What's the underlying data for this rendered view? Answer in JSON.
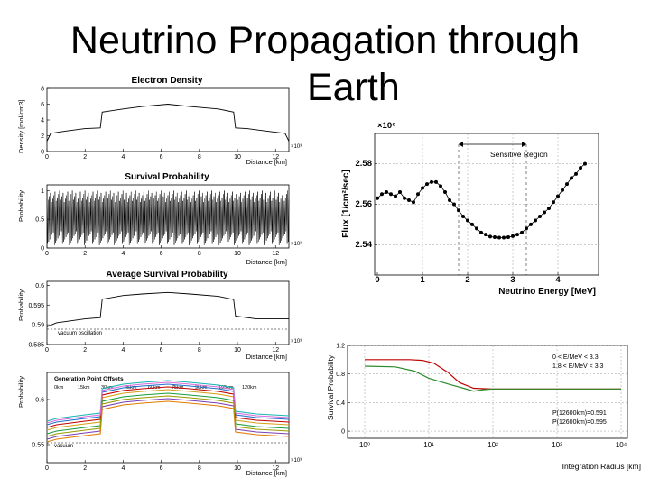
{
  "slide_title_line1": "Neutrino Propagation through",
  "slide_title_line2": "Earth",
  "panels": {
    "electron_density": {
      "title": "Electron Density",
      "ylabel": "Density [mol/cm3]",
      "xlabel": "Distance [km]",
      "xexp": "×10³",
      "xticks": [
        "0",
        "2",
        "4",
        "6",
        "8",
        "10",
        "12"
      ],
      "yticks": [
        "0",
        "2",
        "4",
        "6",
        "8"
      ]
    },
    "survival": {
      "title": "Survival Probability",
      "ylabel": "Probability",
      "xlabel": "Distance [km]",
      "xexp": "×10³",
      "xticks": [
        "0",
        "2",
        "4",
        "6",
        "8",
        "10",
        "12"
      ],
      "yticks": [
        "0",
        "0.5",
        "1"
      ]
    },
    "average_survival": {
      "title": "Average Survival Probability",
      "ylabel": "Probability",
      "xlabel": "Distance [km]",
      "xexp": "×10³",
      "xticks": [
        "0",
        "2",
        "4",
        "6",
        "8",
        "10",
        "12"
      ],
      "yticks": [
        "0.585",
        "0.59",
        "0.595",
        "0.6"
      ],
      "annotation": "vacuum oscillation"
    },
    "generation_offsets": {
      "title": "Generation Point Offsets",
      "ylabel": "Probability",
      "xlabel": "Distance [km]",
      "xexp": "×10³",
      "xticks": [
        "0",
        "2",
        "4",
        "6",
        "8",
        "10",
        "12"
      ],
      "yticks": [
        "0.55",
        "0.6"
      ],
      "annotation": "vacuum",
      "legend": [
        {
          "label": "0km",
          "color": "#d4a017"
        },
        {
          "label": "15km",
          "color": "#7a3fb5"
        },
        {
          "label": "30km",
          "color": "#1e6fd0"
        },
        {
          "label": "45km",
          "color": "#1a9c3c"
        },
        {
          "label": "60km",
          "color": "#18b4b4"
        },
        {
          "label": "75km",
          "color": "#e07b00"
        },
        {
          "label": "90km",
          "color": "#c00000"
        },
        {
          "label": "105km",
          "color": "#9a9a00"
        },
        {
          "label": "120km",
          "color": "#d86bd8"
        }
      ]
    },
    "flux": {
      "ylabel": "Flux [1/cm²/sec]",
      "xlabel": "Neutrino Energy [MeV]",
      "yexp": "×10⁶",
      "xticks": [
        "0",
        "1",
        "2",
        "3",
        "4"
      ],
      "yticks": [
        "2.54",
        "2.56",
        "2.58"
      ],
      "annotation": "Sensitive Region"
    },
    "integration": {
      "ylabel": "Survival Probability",
      "xlabel": "Integration Radius [km]",
      "yticks": [
        "0",
        "0.4",
        "0.8",
        "1.2"
      ],
      "xticks": [
        "10⁰",
        "10¹",
        "10²",
        "10³",
        "10⁴"
      ],
      "legend": [
        {
          "label": "0 < E/MeV < 3.3",
          "color": "#c00000"
        },
        {
          "label": "1.8 < E/MeV < 3.3",
          "color": "#2a8a2a"
        }
      ],
      "notes": [
        {
          "label": "P(12600km)=0.591",
          "color": "#2a8a2a"
        },
        {
          "label": "P(12600km)=0.595",
          "color": "#c00000"
        }
      ]
    }
  },
  "chart_data": [
    {
      "type": "line",
      "title": "Electron Density",
      "xlabel": "Distance [km]",
      "ylabel": "Density [mol/cm3]",
      "xlim": [
        0,
        12700
      ],
      "ylim": [
        0,
        8
      ],
      "x": [
        0,
        200,
        1000,
        2000,
        2800,
        2900,
        4000,
        5000,
        6350,
        7500,
        9000,
        9800,
        9900,
        10500,
        11500,
        12500,
        12700
      ],
      "y": [
        1.3,
        2.3,
        2.6,
        2.9,
        3.0,
        5.0,
        5.4,
        5.7,
        6.0,
        5.7,
        5.4,
        5.0,
        3.0,
        2.9,
        2.6,
        2.3,
        1.3
      ]
    },
    {
      "type": "line",
      "title": "Survival Probability",
      "xlabel": "Distance [km]",
      "ylabel": "Probability",
      "xlim": [
        0,
        12700
      ],
      "ylim": [
        0,
        1.1
      ],
      "range": [
        0.05,
        1.0
      ]
    },
    {
      "type": "line",
      "title": "Average Survival Probability",
      "xlabel": "Distance [km]",
      "ylabel": "Probability",
      "xlim": [
        0,
        12700
      ],
      "ylim": [
        0.585,
        0.601
      ],
      "x": [
        0,
        500,
        2000,
        2800,
        2900,
        4000,
        5000,
        6350,
        7500,
        9000,
        9800,
        9900,
        11000,
        12700
      ],
      "y": [
        0.5895,
        0.5905,
        0.5915,
        0.5918,
        0.5965,
        0.5974,
        0.5978,
        0.5982,
        0.5978,
        0.5972,
        0.5964,
        0.5922,
        0.5915,
        0.5915
      ]
    },
    {
      "type": "line",
      "title": "Generation Point Offsets",
      "xlabel": "Distance [km]",
      "ylabel": "Probability",
      "xlim": [
        0,
        12700
      ],
      "ylim": [
        0.53,
        0.63
      ],
      "series": [
        {
          "name": "0km",
          "offset": 0.0
        },
        {
          "name": "15km",
          "offset": -0.01
        },
        {
          "name": "30km",
          "offset": 0.006
        },
        {
          "name": "45km",
          "offset": -0.004
        },
        {
          "name": "60km",
          "offset": 0.01
        },
        {
          "name": "75km",
          "offset": -0.013
        },
        {
          "name": "90km",
          "offset": 0.003
        },
        {
          "name": "105km",
          "offset": -0.007
        },
        {
          "name": "120km",
          "offset": 0.008
        }
      ]
    },
    {
      "type": "scatter",
      "xlabel": "Neutrino Energy [MeV]",
      "ylabel": "Flux [1/cm²/sec]",
      "xlim": [
        0,
        4.9
      ],
      "ylim": [
        2.525,
        2.595
      ],
      "sensitive_region": [
        1.8,
        3.3
      ],
      "x": [
        0.0,
        0.1,
        0.2,
        0.3,
        0.4,
        0.5,
        0.6,
        0.7,
        0.8,
        0.9,
        1.0,
        1.1,
        1.2,
        1.3,
        1.4,
        1.5,
        1.6,
        1.7,
        1.8,
        1.9,
        2.0,
        2.1,
        2.2,
        2.3,
        2.4,
        2.5,
        2.6,
        2.7,
        2.8,
        2.9,
        3.0,
        3.1,
        3.2,
        3.3,
        3.4,
        3.5,
        3.6,
        3.7,
        3.8,
        3.9,
        4.0,
        4.1,
        4.2,
        4.3,
        4.4,
        4.5,
        4.6
      ],
      "y": [
        2.563,
        2.565,
        2.566,
        2.565,
        2.564,
        2.566,
        2.563,
        2.562,
        2.561,
        2.565,
        2.568,
        2.57,
        2.571,
        2.571,
        2.569,
        2.566,
        2.562,
        2.56,
        2.557,
        2.554,
        2.552,
        2.55,
        2.548,
        2.546,
        2.545,
        2.544,
        2.5437,
        2.5435,
        2.5435,
        2.5437,
        2.5442,
        2.545,
        2.546,
        2.548,
        2.55,
        2.552,
        2.554,
        2.556,
        2.558,
        2.561,
        2.564,
        2.567,
        2.57,
        2.573,
        2.575,
        2.578,
        2.58
      ]
    },
    {
      "type": "line",
      "xlabel": "Integration Radius [km]",
      "ylabel": "Survival Probability",
      "xscale": "log",
      "xlim": [
        1,
        10000
      ],
      "ylim": [
        -0.1,
        1.2
      ],
      "series": [
        {
          "name": "0 < E/MeV < 3.3",
          "x": [
            1,
            5,
            8,
            12,
            20,
            30,
            50,
            100,
            10000
          ],
          "y": [
            1.0,
            1.0,
            0.99,
            0.95,
            0.82,
            0.68,
            0.6,
            0.59,
            0.59
          ]
        },
        {
          "name": "1.8 < E/MeV < 3.3",
          "x": [
            1,
            3,
            6,
            10,
            20,
            35,
            50,
            70,
            100,
            10000
          ],
          "y": [
            0.91,
            0.9,
            0.84,
            0.74,
            0.66,
            0.6,
            0.56,
            0.58,
            0.59,
            0.59
          ]
        }
      ]
    }
  ]
}
